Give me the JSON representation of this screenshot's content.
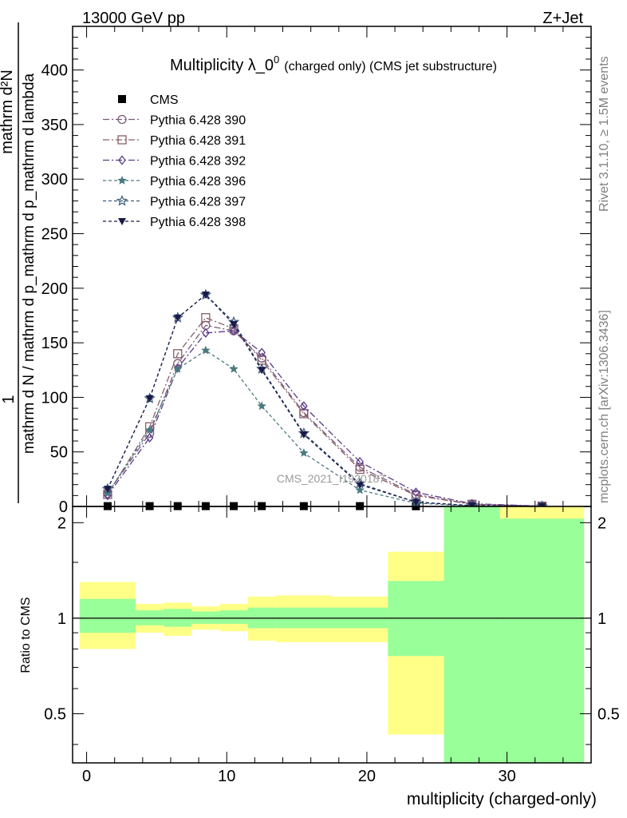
{
  "header": {
    "left": "13000 GeV pp",
    "right": "Z+Jet"
  },
  "side_labels": {
    "rivet": "Rivet 3.1.10, ≥ 1.5M events",
    "mcplots": "mcplots.cern.ch [arXiv:1306.3436]"
  },
  "watermark": "CMS_2021_I1920187",
  "chart_data": [
    {
      "type": "line",
      "title": "Multiplicity λ_0",
      "title_sup": "0",
      "title_note": "(charged only) (CMS jet substructure)",
      "ylabel_top": "1",
      "ylabel_numerator": "mathrm d²N",
      "ylabel_denominator": "mathrm d N / mathrm d p_mathrm d p_mathrm d lambda",
      "xlim": [
        -1,
        36
      ],
      "ylim": [
        0,
        440
      ],
      "yticks": [
        0,
        50,
        100,
        150,
        200,
        250,
        300,
        350,
        400
      ],
      "legend_position": "top-left",
      "x": [
        1.5,
        4.5,
        6.5,
        8.5,
        10.5,
        12.5,
        15.5,
        19.5,
        23.5,
        27.5,
        32.5
      ],
      "series": [
        {
          "name": "CMS",
          "color": "#000000",
          "marker": "square-filled",
          "dash": "none",
          "values": [
            0.3,
            0.3,
            0.3,
            0.3,
            0.3,
            0.3,
            0.3,
            0.3,
            0.2,
            0.1,
            0.05
          ]
        },
        {
          "name": "Pythia 6.428 390",
          "color": "#7a5a7a",
          "marker": "circle-open",
          "dash": "8,3,2,3",
          "values": [
            12,
            67,
            131,
            166,
            161,
            136,
            86,
            36,
            11,
            2,
            0.4
          ]
        },
        {
          "name": "Pythia 6.428 391",
          "color": "#8a5f6a",
          "marker": "square-open",
          "dash": "8,3,2,3",
          "values": [
            11,
            73,
            140,
            173,
            163,
            134,
            85,
            34,
            10,
            2,
            0.3
          ]
        },
        {
          "name": "Pythia 6.428 392",
          "color": "#5a3a8a",
          "marker": "diamond-open",
          "dash": "8,3,2,3",
          "values": [
            10,
            63,
            127,
            159,
            161,
            141,
            92,
            41,
            13,
            2.5,
            0.4
          ]
        },
        {
          "name": "Pythia 6.428 396",
          "color": "#4a7a80",
          "marker": "star-filled",
          "dash": "4,3",
          "values": [
            12,
            70,
            126,
            143,
            126,
            92,
            49,
            15,
            3,
            0.5,
            0.05
          ]
        },
        {
          "name": "Pythia 6.428 397",
          "color": "#3a5a78",
          "marker": "star-open",
          "dash": "4,3",
          "values": [
            16,
            99,
            173,
            194,
            169,
            126,
            67,
            21,
            4,
            0.8,
            0.1
          ]
        },
        {
          "name": "Pythia 6.428 398",
          "color": "#1a1a4a",
          "marker": "triangle-down-filled",
          "dash": "4,3",
          "values": [
            16,
            99,
            173,
            194,
            167,
            125,
            66,
            20,
            4,
            0.7,
            0.1
          ]
        }
      ]
    },
    {
      "type": "area",
      "ylabel": "Ratio to CMS",
      "xlabel": "multiplicity (charged-only)",
      "xlim": [
        -1,
        36
      ],
      "ylim": [
        0.35,
        2.25
      ],
      "log_scale_y": true,
      "yticks": [
        0.5,
        1,
        2
      ],
      "xticks": [
        0,
        10,
        20,
        30
      ],
      "reference_line": 1,
      "bins": [
        {
          "lo": -0.5,
          "hi": 3.5,
          "stat": [
            0.9,
            1.15
          ],
          "total": [
            0.8,
            1.3
          ]
        },
        {
          "lo": 3.5,
          "hi": 5.5,
          "stat": [
            0.95,
            1.06
          ],
          "total": [
            0.9,
            1.11
          ]
        },
        {
          "lo": 5.5,
          "hi": 7.5,
          "stat": [
            0.94,
            1.07
          ],
          "total": [
            0.88,
            1.12
          ]
        },
        {
          "lo": 7.5,
          "hi": 9.5,
          "stat": [
            0.96,
            1.05
          ],
          "total": [
            0.92,
            1.09
          ]
        },
        {
          "lo": 9.5,
          "hi": 11.5,
          "stat": [
            0.96,
            1.06
          ],
          "total": [
            0.91,
            1.11
          ]
        },
        {
          "lo": 11.5,
          "hi": 13.5,
          "stat": [
            0.93,
            1.08
          ],
          "total": [
            0.85,
            1.17
          ]
        },
        {
          "lo": 13.5,
          "hi": 17.5,
          "stat": [
            0.93,
            1.08
          ],
          "total": [
            0.84,
            1.18
          ]
        },
        {
          "lo": 17.5,
          "hi": 21.5,
          "stat": [
            0.93,
            1.08
          ],
          "total": [
            0.84,
            1.17
          ]
        },
        {
          "lo": 21.5,
          "hi": 25.5,
          "stat": [
            0.76,
            1.31
          ],
          "total": [
            0.43,
            1.62
          ]
        },
        {
          "lo": 25.5,
          "hi": 29.5,
          "stat": [
            0.3,
            2.5
          ],
          "total": [
            0.3,
            2.5
          ]
        },
        {
          "lo": 29.5,
          "hi": 35.5,
          "stat": [
            0.3,
            2.06
          ],
          "total": [
            0.3,
            2.5
          ]
        }
      ]
    }
  ]
}
